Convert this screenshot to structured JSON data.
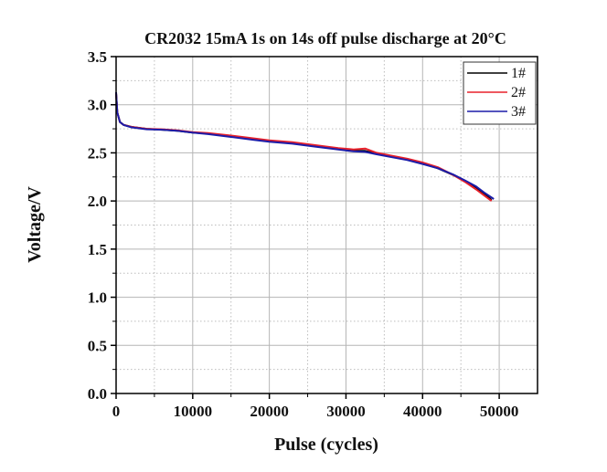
{
  "chart_data": {
    "type": "line",
    "title": "CR2032 15mA 1s on 14s off pulse discharge at 20°C",
    "xlabel": "Pulse (cycles)",
    "ylabel": "Voltage/V",
    "xlim": [
      0,
      55000
    ],
    "ylim": [
      0,
      3.5
    ],
    "xticks": [
      0,
      10000,
      20000,
      30000,
      40000,
      50000
    ],
    "xtick_labels": [
      "0",
      "10000",
      "20000",
      "30000",
      "40000",
      "50000"
    ],
    "yticks": [
      0.0,
      0.5,
      1.0,
      1.5,
      2.0,
      2.5,
      3.0,
      3.5
    ],
    "ytick_labels": [
      "0.0",
      "0.5",
      "1.0",
      "1.5",
      "2.0",
      "2.5",
      "3.0",
      "3.5"
    ],
    "grid": true,
    "legend_position": "top-right",
    "series": [
      {
        "name": "1#",
        "color": "#000000",
        "x": [
          0,
          150,
          500,
          1000,
          2000,
          4000,
          6000,
          8000,
          10000,
          12000,
          15000,
          18000,
          20000,
          23000,
          26000,
          29000,
          31000,
          32500,
          34000,
          36000,
          38000,
          40000,
          42000,
          44000,
          45500,
          47000,
          48000,
          49000
        ],
        "y": [
          3.12,
          2.92,
          2.82,
          2.79,
          2.77,
          2.75,
          2.74,
          2.73,
          2.71,
          2.7,
          2.67,
          2.64,
          2.62,
          2.6,
          2.57,
          2.54,
          2.52,
          2.52,
          2.49,
          2.46,
          2.43,
          2.39,
          2.34,
          2.27,
          2.21,
          2.14,
          2.08,
          2.01
        ]
      },
      {
        "name": "2#",
        "color": "#e8202a",
        "x": [
          0,
          150,
          500,
          1000,
          2000,
          4000,
          6000,
          8000,
          10000,
          12000,
          15000,
          18000,
          20000,
          23000,
          26000,
          29000,
          31000,
          32500,
          34000,
          36000,
          38000,
          40000,
          42000,
          44000,
          45500,
          47000,
          48000,
          49000
        ],
        "y": [
          3.12,
          2.92,
          2.82,
          2.79,
          2.77,
          2.75,
          2.745,
          2.735,
          2.715,
          2.705,
          2.68,
          2.65,
          2.63,
          2.61,
          2.58,
          2.55,
          2.535,
          2.545,
          2.5,
          2.47,
          2.44,
          2.4,
          2.35,
          2.27,
          2.2,
          2.12,
          2.06,
          2.0
        ]
      },
      {
        "name": "3#",
        "color": "#1c1ca8",
        "x": [
          0,
          150,
          500,
          1000,
          2000,
          4000,
          6000,
          8000,
          10000,
          12000,
          15000,
          18000,
          20000,
          23000,
          26000,
          29000,
          31000,
          32500,
          34000,
          36000,
          38000,
          40000,
          42000,
          44000,
          45500,
          47000,
          48000,
          49300
        ],
        "y": [
          3.13,
          2.92,
          2.82,
          2.79,
          2.765,
          2.745,
          2.74,
          2.73,
          2.71,
          2.695,
          2.665,
          2.635,
          2.615,
          2.595,
          2.565,
          2.535,
          2.515,
          2.51,
          2.485,
          2.455,
          2.425,
          2.385,
          2.34,
          2.275,
          2.215,
          2.15,
          2.09,
          2.02
        ]
      }
    ]
  }
}
